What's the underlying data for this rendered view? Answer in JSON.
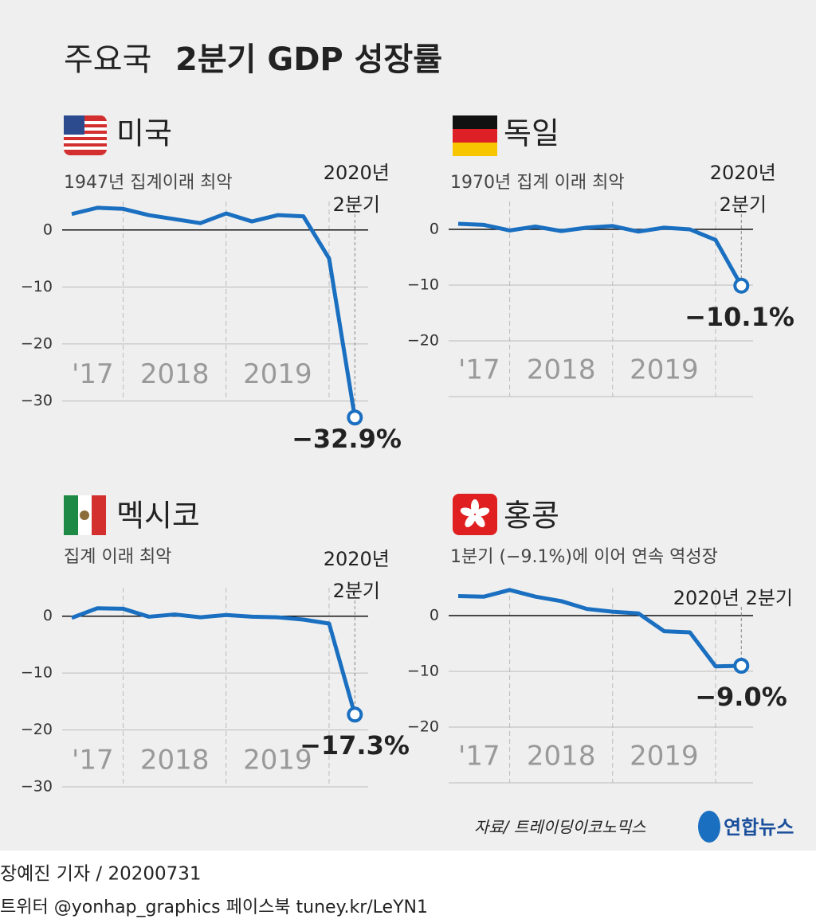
{
  "title_lead": "주요국",
  "title": "2분기 GDP 성장률",
  "source": "자료/ 트레이딩이코노믹스",
  "logo": "연합뉴스",
  "byline": "장예진 기자 / 20200731",
  "social": "트위터 @yonhap_graphics  페이스북 tuney.kr/LeYN1",
  "chart_data": [
    {
      "type": "line",
      "title": "미국",
      "subtitle": "1947년 집계이래 최악",
      "color": "#1a6fc0",
      "categories": [
        null,
        null,
        null,
        null,
        null,
        null,
        null,
        null,
        null,
        null,
        null,
        null
      ],
      "year_labels": [
        "'17",
        "2018",
        "2019"
      ],
      "values": [
        2.8,
        3.9,
        3.7,
        2.6,
        1.9,
        1.2,
        2.9,
        1.5,
        2.6,
        2.4,
        -5.0,
        -32.9
      ],
      "value_label": "−32.9%",
      "annotation": [
        "2020년",
        "2분기"
      ],
      "ylim": [
        -30,
        5
      ],
      "yticks": [
        {
          "value": 0,
          "label": "0"
        },
        {
          "value": -10,
          "label": "−10"
        },
        {
          "value": -20,
          "label": "−20"
        },
        {
          "value": -30,
          "label": "−30"
        }
      ]
    },
    {
      "type": "line",
      "title": "독일",
      "subtitle": "1970년 집계 이래 최악",
      "color": "#1a6fc0",
      "categories": [
        null,
        null,
        null,
        null,
        null,
        null,
        null,
        null,
        null,
        null,
        null,
        null
      ],
      "year_labels": [
        "'17",
        "2018",
        "2019"
      ],
      "values": [
        1.0,
        0.8,
        -0.2,
        0.5,
        -0.3,
        0.3,
        0.6,
        -0.4,
        0.3,
        0.0,
        -1.9,
        -10.1
      ],
      "value_label": "−10.1%",
      "annotation": [
        "2020년",
        "2분기"
      ],
      "ylim": [
        -30,
        5
      ],
      "yticks": [
        {
          "value": 0,
          "label": "0"
        },
        {
          "value": -10,
          "label": "−10"
        },
        {
          "value": -20,
          "label": "−20"
        }
      ]
    },
    {
      "type": "line",
      "title": "멕시코",
      "subtitle": "집계 이래 최악",
      "color": "#1a6fc0",
      "categories": [
        null,
        null,
        null,
        null,
        null,
        null,
        null,
        null,
        null,
        null,
        null,
        null
      ],
      "year_labels": [
        "'17",
        "2018",
        "2019"
      ],
      "values": [
        -0.3,
        1.4,
        1.3,
        -0.1,
        0.3,
        -0.2,
        0.2,
        -0.1,
        -0.2,
        -0.6,
        -1.3,
        -17.3
      ],
      "value_label": "−17.3%",
      "annotation": [
        "2020년",
        "2분기"
      ],
      "ylim": [
        -30,
        5
      ],
      "yticks": [
        {
          "value": 0,
          "label": "0"
        },
        {
          "value": -10,
          "label": "−10"
        },
        {
          "value": -20,
          "label": "−20"
        },
        {
          "value": -30,
          "label": "−30"
        }
      ]
    },
    {
      "type": "line",
      "title": "홍콩",
      "subtitle": "1분기 (−9.1%)에 이어 연속 역성장",
      "color": "#1a6fc0",
      "categories": [
        null,
        null,
        null,
        null,
        null,
        null,
        null,
        null,
        null,
        null,
        null,
        null
      ],
      "year_labels": [
        "'17",
        "2018",
        "2019"
      ],
      "values": [
        3.5,
        3.4,
        4.6,
        3.4,
        2.6,
        1.2,
        0.7,
        0.4,
        -2.8,
        -3.0,
        -9.1,
        -9.0
      ],
      "value_label": "−9.0%",
      "annotation": [
        "2020년 2분기"
      ],
      "ylim": [
        -30,
        5
      ],
      "yticks": [
        {
          "value": 0,
          "label": "0"
        },
        {
          "value": -10,
          "label": "−10"
        },
        {
          "value": -20,
          "label": "−20"
        }
      ]
    }
  ]
}
